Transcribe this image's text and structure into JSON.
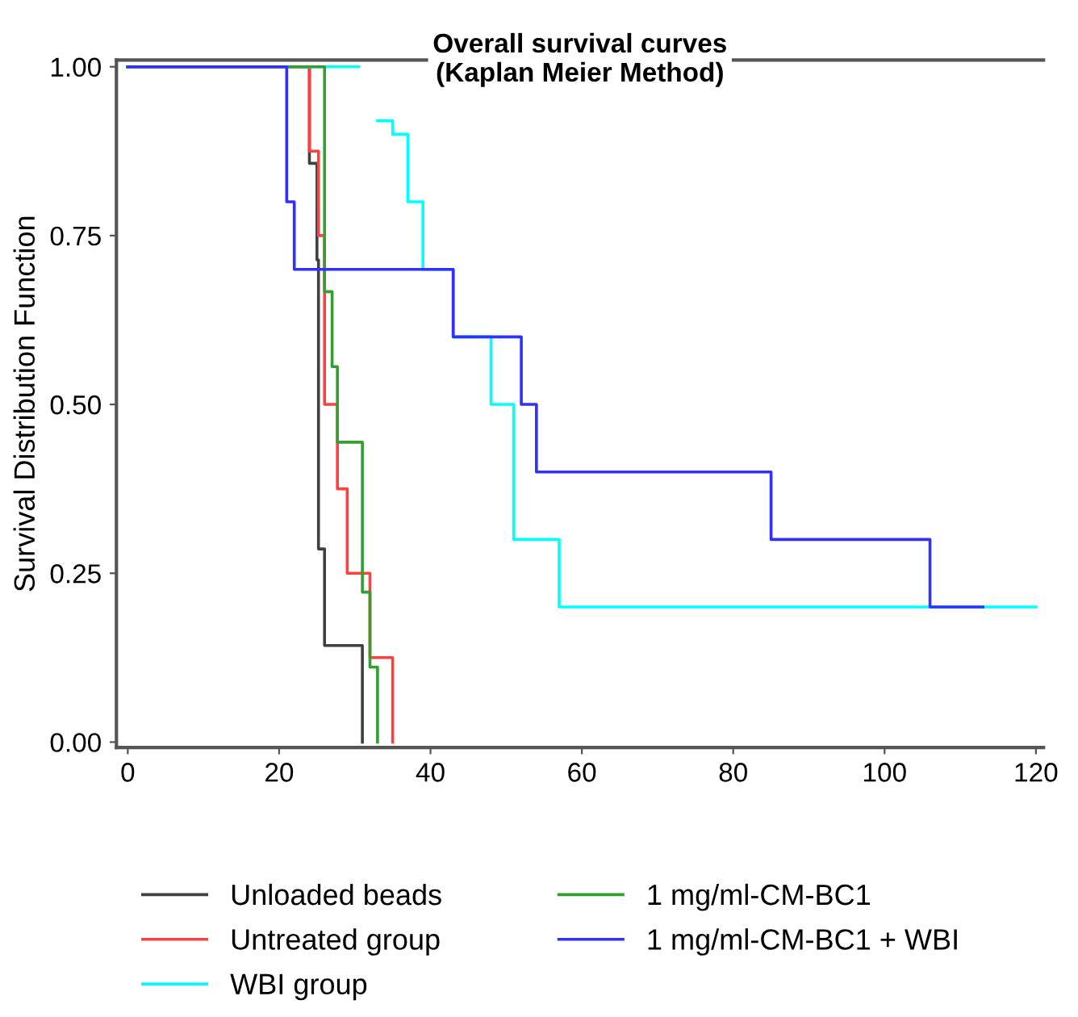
{
  "chart_data": {
    "type": "step",
    "title": "Overall survival curves\n(Kaplan Meier Method)",
    "ylabel": "Survival Distribution Function",
    "xlim": [
      -1.5,
      121
    ],
    "xticks": [
      0,
      20,
      40,
      60,
      80,
      100,
      120
    ],
    "ylim": [
      -0.008,
      1.01
    ],
    "yticks": [
      {
        "value": 0,
        "label": "0.00"
      },
      {
        "value": 0.25,
        "label": "0.25"
      },
      {
        "value": 0.5,
        "label": "0.50"
      },
      {
        "value": 0.75,
        "label": "0.75"
      },
      {
        "value": 1,
        "label": "1.00"
      }
    ],
    "grid": false,
    "legend": "bottom",
    "line_style": "solid",
    "marker": "none",
    "series": [
      {
        "name": "Unloaded beads",
        "color": "#404040",
        "x": [
          0,
          24,
          25,
          25.2,
          26,
          31
        ],
        "values": [
          1,
          0.857,
          0.714,
          0.286,
          0.143,
          0
        ]
      },
      {
        "name": "Untreated group",
        "color": "#ff4040",
        "x": [
          0,
          24,
          25.2,
          26,
          27.7,
          29,
          32,
          35
        ],
        "values": [
          1,
          0.875,
          0.75,
          0.5,
          0.375,
          0.25,
          0.125,
          0
        ]
      },
      {
        "name": "WBI group",
        "color": "#00ffff",
        "x": [
          0,
          30.4,
          30.5,
          33,
          35,
          37,
          39,
          43,
          48,
          51,
          57,
          120
        ],
        "values": [
          1,
          1,
          null,
          0.92,
          0.9,
          0.8,
          0.7,
          0.6,
          0.5,
          0.3,
          0.2,
          0.2
        ]
      },
      {
        "name": "1 mg/ml-CM-BC1",
        "color": "#30a030",
        "x": [
          0,
          26,
          27,
          27.7,
          31,
          32,
          33
        ],
        "values": [
          1,
          0.667,
          0.556,
          0.444,
          0.222,
          0.111,
          0
        ]
      },
      {
        "name": "1 mg/ml-CM-BC1 + WBI",
        "color": "#3030ff",
        "x": [
          0,
          21,
          22,
          43,
          52,
          54,
          85,
          106,
          113
        ],
        "values": [
          1,
          0.8,
          0.7,
          0.6,
          0.5,
          0.4,
          0.3,
          0.2,
          0.2
        ]
      }
    ]
  }
}
